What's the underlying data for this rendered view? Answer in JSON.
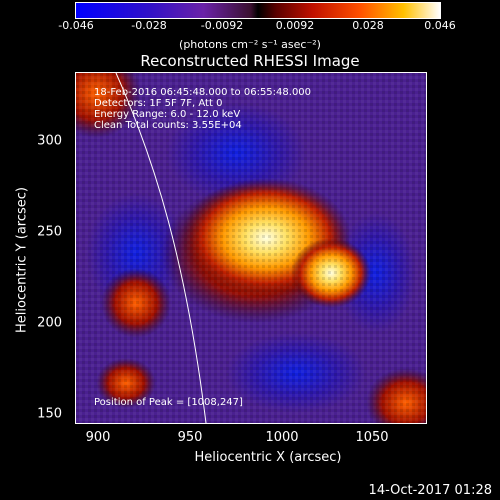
{
  "colorbar": {
    "ticks": [
      "-0.046",
      "-0.028",
      "-0.0092",
      "0.0092",
      "0.028",
      "0.046"
    ],
    "units": "(photons cm⁻² s⁻¹ asec⁻²)"
  },
  "title": "Reconstructed RHESSI Image",
  "info": {
    "time_range": "18-Feb-2016 06:45:48.000 to 06:55:48.000",
    "detectors": "Detectors: 1F 5F 7F, Att 0",
    "energy": "Energy Range: 6.0 - 12.0 keV",
    "method": "Clean     Total counts: 3.55E+04",
    "peak": "Position of Peak = [1008,247]"
  },
  "axes": {
    "x_label": "Heliocentric X (arcsec)",
    "y_label": "Heliocentric Y (arcsec)",
    "x_ticks": [
      "900",
      "950",
      "1000",
      "1050"
    ],
    "y_ticks": [
      "300",
      "250",
      "200",
      "150"
    ],
    "x_range": [
      887,
      1078
    ],
    "y_range": [
      142,
      334
    ]
  },
  "timestamp": "14-Oct-2017 01:28"
}
